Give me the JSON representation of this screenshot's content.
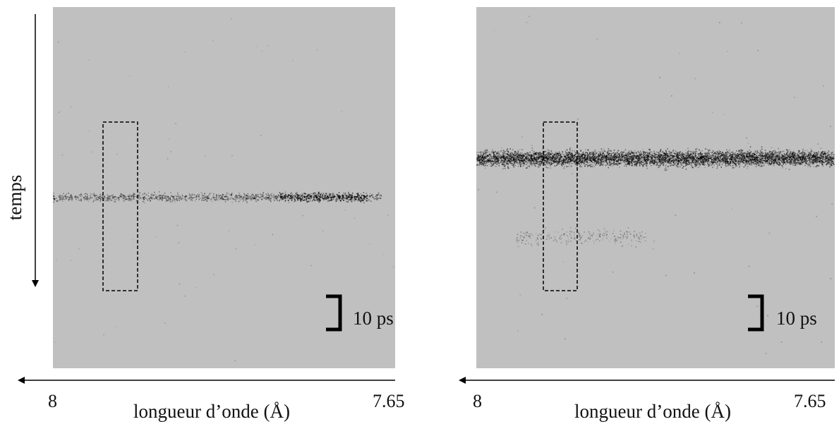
{
  "y_axis_label": "temps",
  "panels": [
    {
      "scale_label": "10 ps",
      "x_start_label": "8",
      "x_end_label": "7.65",
      "x_axis_label": "longueur d’onde (Å)"
    },
    {
      "scale_label": "10 ps",
      "x_start_label": "8",
      "x_end_label": "7.65",
      "x_axis_label": "longueur d’onde (Å)"
    }
  ]
}
